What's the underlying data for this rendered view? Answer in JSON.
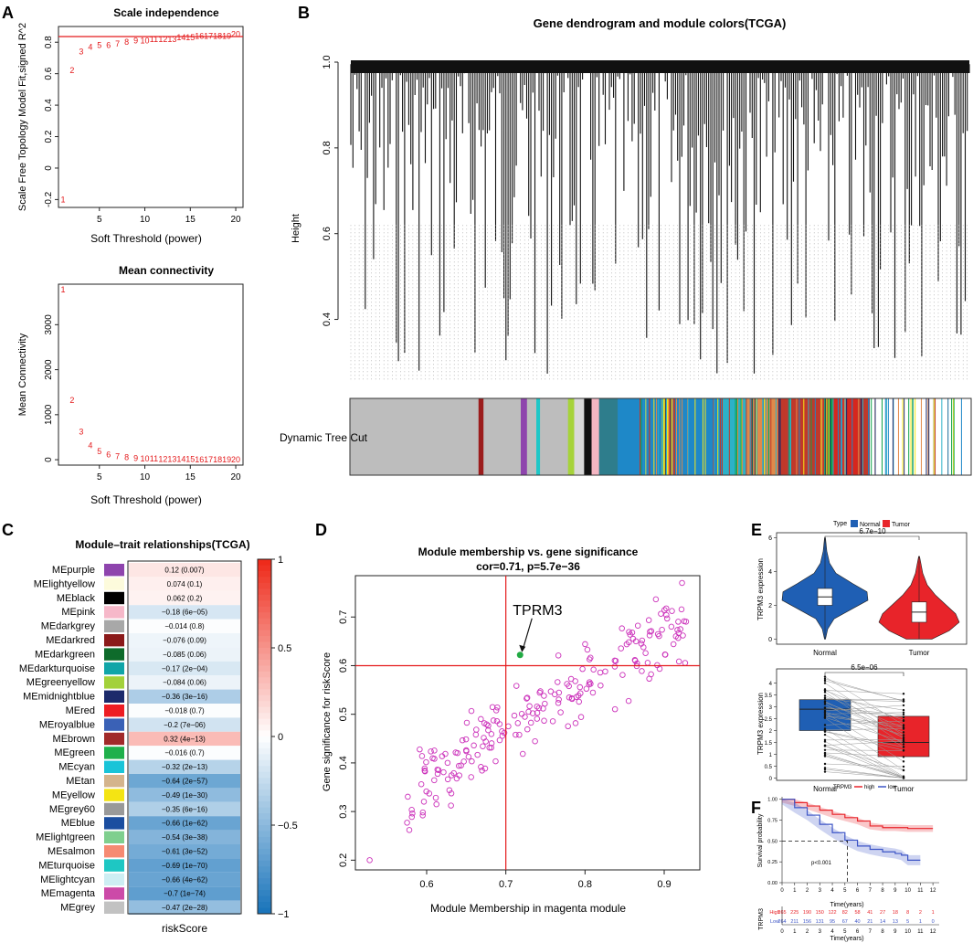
{
  "panel_labels": {
    "A": "A",
    "B": "B",
    "C": "C",
    "D": "D",
    "E": "E",
    "F": "F"
  },
  "colors": {
    "red": "#e41a1c",
    "magenta": "#cc33bb",
    "green": "#22aa44",
    "normal": "#1f5fb4",
    "tumor": "#e8242a",
    "low_blue": "#3d55c6"
  },
  "chart_data": [
    {
      "id": "A1",
      "type": "scatter",
      "title": "Scale independence",
      "xlabel": "Soft Threshold (power)",
      "ylabel": "Scale Free Topology Model Fit,signed R^2",
      "xlim": [
        0.5,
        20.8
      ],
      "ylim": [
        -0.25,
        0.9
      ],
      "xticks": [
        5,
        10,
        15,
        20
      ],
      "yticks": [
        -0.2,
        0,
        0.2,
        0.4,
        0.6,
        0.8
      ],
      "hline": 0.85,
      "labels": [
        "1",
        "2",
        "3",
        "4",
        "5",
        "6",
        "7",
        "8",
        "9",
        "10",
        "11",
        "12",
        "13",
        "14",
        "15",
        "16",
        "17",
        "18",
        "19",
        "20"
      ],
      "x": [
        1,
        2,
        3,
        4,
        5,
        6,
        7,
        8,
        9,
        10,
        11,
        12,
        13,
        14,
        15,
        16,
        17,
        18,
        19,
        20
      ],
      "y": [
        -0.2,
        0.62,
        0.74,
        0.77,
        0.78,
        0.78,
        0.79,
        0.8,
        0.81,
        0.81,
        0.82,
        0.82,
        0.82,
        0.83,
        0.83,
        0.84,
        0.84,
        0.84,
        0.84,
        0.85
      ]
    },
    {
      "id": "A2",
      "type": "scatter",
      "title": "Mean connectivity",
      "xlabel": "Soft Threshold (power)",
      "ylabel": "Mean Connectivity",
      "xlim": [
        0.5,
        20.8
      ],
      "ylim": [
        -120,
        3900
      ],
      "xticks": [
        5,
        10,
        15,
        20
      ],
      "yticks": [
        0,
        1000,
        2000,
        3000
      ],
      "labels": [
        "1",
        "2",
        "3",
        "4",
        "5",
        "6",
        "7",
        "8",
        "9",
        "10",
        "11",
        "12",
        "13",
        "14",
        "15",
        "16",
        "17",
        "18",
        "19",
        "20"
      ],
      "x": [
        1,
        2,
        3,
        4,
        5,
        6,
        7,
        8,
        9,
        10,
        11,
        12,
        13,
        14,
        15,
        16,
        17,
        18,
        19,
        20
      ],
      "y": [
        3780,
        1320,
        620,
        320,
        180,
        110,
        70,
        50,
        35,
        25,
        20,
        15,
        12,
        10,
        8,
        6,
        5,
        4,
        3,
        2
      ]
    },
    {
      "id": "B",
      "type": "dendrogram",
      "title": "Gene dendrogram and module colors(TCGA)",
      "ylabel": "Height",
      "ylim": [
        0.22,
        1.0
      ],
      "yticks": [
        0.4,
        0.6,
        0.8,
        1.0
      ],
      "colorbar_label": "Dynamic Tree Cut",
      "colorbar_segments": [
        {
          "color": "#bdbdbd",
          "w": 0.207
        },
        {
          "color": "#9b1c1c",
          "w": 0.008
        },
        {
          "color": "#bdbdbd",
          "w": 0.06
        },
        {
          "color": "#8e44ad",
          "w": 0.01
        },
        {
          "color": "#bdbdbd",
          "w": 0.015
        },
        {
          "color": "#1ec7c7",
          "w": 0.006
        },
        {
          "color": "#bdbdbd",
          "w": 0.045
        },
        {
          "color": "#a6d33a",
          "w": 0.01
        },
        {
          "color": "#d9d9d9",
          "w": 0.016
        },
        {
          "color": "#111111",
          "w": 0.012
        },
        {
          "color": "#f4b6c2",
          "w": 0.012
        },
        {
          "color": "#2e7d8c",
          "w": 0.03
        },
        {
          "color": "#1e88c8",
          "w": 0.07
        },
        {
          "color": "#f5e617",
          "w": 0.018
        },
        {
          "color": "#1e88c8",
          "w": 0.08
        },
        {
          "color": "#2db1c8",
          "w": 0.04
        },
        {
          "color": "#e0894a",
          "w": 0.05
        },
        {
          "color": "#c0392b",
          "w": 0.08
        },
        {
          "color": "#0fa34a",
          "w": 0.008
        },
        {
          "color": "#d7261e",
          "w": 0.04
        },
        {
          "color": "#c0392b",
          "w": 0.019
        }
      ]
    },
    {
      "id": "C",
      "type": "heatmap",
      "title": "Module–trait relationships(TCGA)",
      "xlabel": "riskScore",
      "scale_range": [
        -1,
        1
      ],
      "scale_ticks": [
        "1",
        "0.5",
        "0",
        "−0.5",
        "−1"
      ],
      "modules": [
        {
          "name": "MEpurple",
          "swatch": "#8e44ad",
          "cor": 0.12,
          "label": "0.12 (0.007)"
        },
        {
          "name": "MElightyellow",
          "swatch": "#fdfbdc",
          "cor": 0.074,
          "label": "0.074 (0.1)"
        },
        {
          "name": "MEblack",
          "swatch": "#000000",
          "cor": 0.062,
          "label": "0.062 (0.2)"
        },
        {
          "name": "MEpink",
          "swatch": "#f6b8c9",
          "cor": -0.18,
          "label": "−0.18 (6e−05)"
        },
        {
          "name": "MEdarkgrey",
          "swatch": "#a8a8a8",
          "cor": -0.014,
          "label": "−0.014 (0.8)"
        },
        {
          "name": "MEdarkred",
          "swatch": "#8b1a1a",
          "cor": -0.076,
          "label": "−0.076 (0.09)"
        },
        {
          "name": "MEdarkgreen",
          "swatch": "#0e6b2b",
          "cor": -0.085,
          "label": "−0.085 (0.06)"
        },
        {
          "name": "MEdarkturquoise",
          "swatch": "#10a5a8",
          "cor": -0.17,
          "label": "−0.17 (2e−04)"
        },
        {
          "name": "MEgreenyellow",
          "swatch": "#a3d13a",
          "cor": -0.084,
          "label": "−0.084 (0.06)"
        },
        {
          "name": "MEmidnightblue",
          "swatch": "#1c2a6b",
          "cor": -0.36,
          "label": "−0.36 (3e−16)"
        },
        {
          "name": "MEred",
          "swatch": "#ee1d23",
          "cor": -0.018,
          "label": "−0.018 (0.7)"
        },
        {
          "name": "MEroyalblue",
          "swatch": "#3a61b6",
          "cor": -0.2,
          "label": "−0.2 (7e−06)"
        },
        {
          "name": "MEbrown",
          "swatch": "#a12a2a",
          "cor": 0.32,
          "label": "0.32 (4e−13)"
        },
        {
          "name": "MEgreen",
          "swatch": "#1fb04b",
          "cor": -0.016,
          "label": "−0.016 (0.7)"
        },
        {
          "name": "MEcyan",
          "swatch": "#19c4d8",
          "cor": -0.32,
          "label": "−0.32 (2e−13)"
        },
        {
          "name": "MEtan",
          "swatch": "#d4b48c",
          "cor": -0.64,
          "label": "−0.64 (2e−57)"
        },
        {
          "name": "MEyellow",
          "swatch": "#f4e413",
          "cor": -0.49,
          "label": "−0.49 (1e−30)"
        },
        {
          "name": "MEgrey60",
          "swatch": "#999999",
          "cor": -0.35,
          "label": "−0.35 (6e−16)"
        },
        {
          "name": "MEblue",
          "swatch": "#1b4ea0",
          "cor": -0.66,
          "label": "−0.66 (1e−62)"
        },
        {
          "name": "MElightgreen",
          "swatch": "#7fcf8e",
          "cor": -0.54,
          "label": "−0.54 (3e−38)"
        },
        {
          "name": "MEsalmon",
          "swatch": "#f68a72",
          "cor": -0.61,
          "label": "−0.61 (3e−52)"
        },
        {
          "name": "MEturquoise",
          "swatch": "#1ec7c3",
          "cor": -0.69,
          "label": "−0.69 (1e−70)"
        },
        {
          "name": "MElightcyan",
          "swatch": "#cdeef3",
          "cor": -0.66,
          "label": "−0.66 (4e−62)"
        },
        {
          "name": "MEmagenta",
          "swatch": "#cc4aa8",
          "cor": -0.7,
          "label": "−0.7 (1e−74)"
        },
        {
          "name": "MEgrey",
          "swatch": "#c2c2c2",
          "cor": -0.47,
          "label": "−0.47 (2e−28)"
        }
      ]
    },
    {
      "id": "D",
      "type": "scatter",
      "title": "Module membership vs. gene significance",
      "subtitle": "cor=0.71, p=5.7e−36",
      "xlabel": "Module Membership in magenta module",
      "ylabel": "Gene significance for  riskScore",
      "xlim": [
        0.51,
        0.945
      ],
      "ylim": [
        0.18,
        0.785
      ],
      "xticks": [
        0.6,
        0.7,
        0.8,
        0.9
      ],
      "yticks": [
        0.2,
        0.3,
        0.4,
        0.5,
        0.6,
        0.7
      ],
      "vline": 0.7,
      "hline": 0.6,
      "highlight": {
        "label": "TPRM3",
        "x": 0.718,
        "y": 0.622
      },
      "n_points": 210
    },
    {
      "id": "E1",
      "type": "violin",
      "legend_title": "Type",
      "groups": [
        "Normal",
        "Tumor"
      ],
      "ylabel": "TRPM3 expression",
      "ylim": [
        -0.3,
        6.3
      ],
      "yticks": [
        0,
        2,
        4,
        6
      ],
      "pvalue": "6.7e−10",
      "medians": [
        2.5,
        1.6
      ],
      "q1": [
        2.0,
        1.0
      ],
      "q3": [
        3.0,
        2.2
      ],
      "max": [
        6.0,
        4.9
      ],
      "min": [
        0.05,
        0.0
      ]
    },
    {
      "id": "E2",
      "type": "paired-box",
      "groups": [
        "Normal",
        "Tumor"
      ],
      "ylabel": "TRPM3 expression",
      "ylim": [
        -0.1,
        4.6
      ],
      "yticks": [
        0,
        0.5,
        1,
        1.5,
        2,
        2.5,
        3,
        3.5,
        4
      ],
      "pvalue": "6.5e−06",
      "medians": [
        2.9,
        1.5
      ],
      "q1": [
        2.0,
        0.9
      ],
      "q3": [
        3.3,
        2.6
      ],
      "n_pairs": 45
    },
    {
      "id": "F",
      "type": "survival",
      "legend_title": "TRPM3",
      "legend": [
        "high",
        "low"
      ],
      "ylabel": "Survival probability",
      "xlabel": "Time(years)",
      "xlim": [
        0,
        12.5
      ],
      "ylim": [
        0,
        1.03
      ],
      "xticks": [
        0,
        1,
        2,
        3,
        4,
        5,
        6,
        7,
        8,
        9,
        10,
        11,
        12
      ],
      "yticks": [
        0.0,
        0.25,
        0.5,
        0.75,
        1.0
      ],
      "pvalue_text": "p<0.001",
      "median_time_low": 5.2,
      "high_curve": {
        "t": [
          0,
          1,
          2,
          3,
          4,
          5,
          6,
          7,
          8,
          9,
          10,
          11,
          12
        ],
        "s": [
          1.0,
          0.96,
          0.92,
          0.87,
          0.82,
          0.78,
          0.74,
          0.68,
          0.66,
          0.66,
          0.65,
          0.65,
          0.65
        ]
      },
      "low_curve": {
        "t": [
          0,
          1,
          2,
          3,
          4,
          5,
          6,
          7,
          8,
          9,
          9.5,
          10,
          11
        ],
        "s": [
          1.0,
          0.9,
          0.81,
          0.7,
          0.6,
          0.51,
          0.44,
          0.4,
          0.37,
          0.35,
          0.33,
          0.27,
          0.27
        ]
      },
      "risk_table": {
        "title": "TRPM3",
        "rows": [
          {
            "label": "High",
            "values": [
              "265",
              "225",
              "190",
              "150",
              "122",
              "82",
              "58",
              "41",
              "27",
              "18",
              "8",
              "2",
              "1"
            ]
          },
          {
            "label": "Low",
            "values": [
              "264",
              "211",
              "156",
              "131",
              "95",
              "67",
              "40",
              "21",
              "14",
              "13",
              "5",
              "1",
              "0"
            ]
          }
        ],
        "xlabel": "Time(years)"
      }
    }
  ]
}
